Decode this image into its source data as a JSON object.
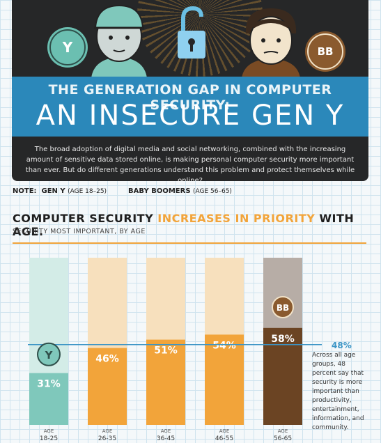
{
  "header": {
    "line1": "THE GENERATION GAP IN COMPUTER SECURITY:",
    "line2": "AN INSECURE GEN Y",
    "intro": "The broad adoption of digital media and social networking, combined with the increasing amount of sensitive data stored online, is making personal computer security more important than ever. But do different generations understand this problem and protect themselves while online?",
    "geny_badge": "Y",
    "bb_badge": "BB",
    "icons": [
      "gen-y-badge-icon",
      "padlock-icon",
      "baby-boomers-badge-icon"
    ]
  },
  "note": {
    "label": "NOTE:",
    "geny": "GEN Y",
    "geny_age": "(AGE 18–25)",
    "bb": "BABY BOOMERS",
    "bb_age": "(AGE 56–65)"
  },
  "section": {
    "title_before": "COMPUTER SECURITY ",
    "title_highlight": "INCREASES IN PRIORITY",
    "title_after": " WITH AGE."
  },
  "chart_data": {
    "type": "bar",
    "subtitle": "SECURITY MOST IMPORTANT, BY AGE",
    "categories": [
      "18-25",
      "26-35",
      "36-45",
      "46-55",
      "56-65"
    ],
    "category_prefix": "AGE",
    "values": [
      31,
      46,
      51,
      54,
      58
    ],
    "value_labels": [
      "31%",
      "46%",
      "51%",
      "54%",
      "58%"
    ],
    "ylim": [
      0,
      100
    ],
    "reference": {
      "value": 48,
      "label": "48%",
      "note": "Across all age groups, 48 percent say that security is more important than productivity, entertainment, information, and community."
    },
    "colors": {
      "geny": "#7fc8bb",
      "geny_bg": "#d3ece7",
      "mid": "#f2a43a",
      "mid_bg": "#f7e0bd",
      "boomer": "#6b4423",
      "boomer_bg": "#b7ada6",
      "reference": "#3b95c6"
    }
  }
}
